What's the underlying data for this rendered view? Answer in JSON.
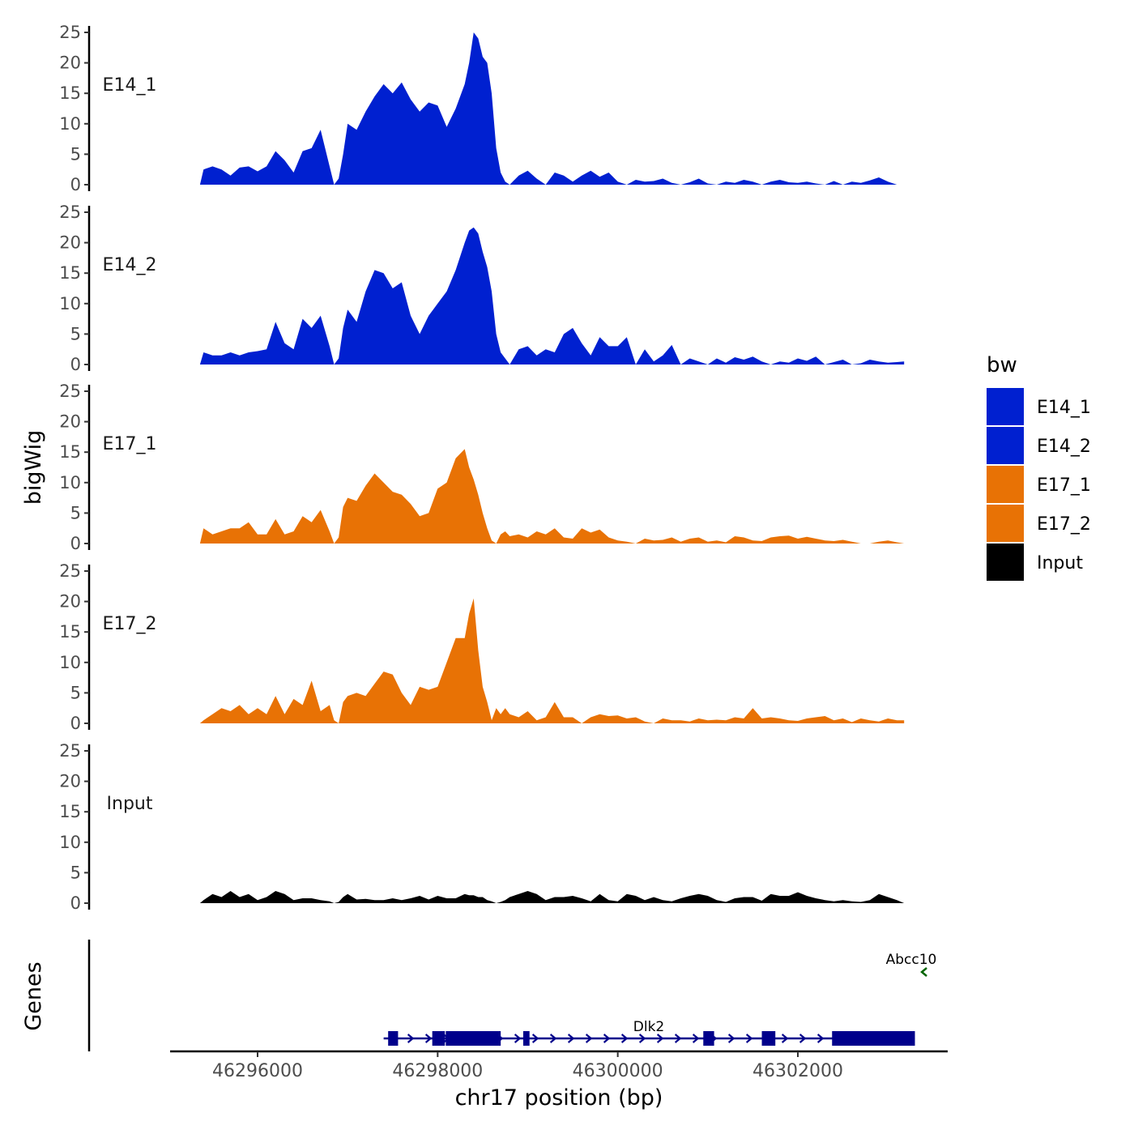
{
  "chart_data": {
    "type": "area",
    "ylabel": "bigWig",
    "xlabel": "chr17 position (bp)",
    "xlim": [
      46295000,
      46303400
    ],
    "x_ticks": [
      46296000,
      46298000,
      46300000,
      46302000
    ],
    "x_tick_labels": [
      "46296000",
      "46298000",
      "46300000",
      "46302000"
    ],
    "ylim": [
      0,
      25
    ],
    "y_ticks": [
      0,
      5,
      10,
      15,
      20,
      25
    ],
    "y_tick_labels": [
      "0",
      "5",
      "10",
      "15",
      "20",
      "25"
    ],
    "legend": {
      "title": "bw",
      "position": "right",
      "entries": [
        {
          "label": "E14_1",
          "color": "#0020d0"
        },
        {
          "label": "E14_2",
          "color": "#0020d0"
        },
        {
          "label": "E17_1",
          "color": "#e87205"
        },
        {
          "label": "E17_2",
          "color": "#e87205"
        },
        {
          "label": "Input",
          "color": "#000000"
        }
      ]
    },
    "series": [
      {
        "name": "E14_1",
        "color": "#0020d0",
        "x": [
          46295360,
          46295400,
          46295500,
          46295600,
          46295700,
          46295800,
          46295900,
          46296000,
          46296100,
          46296200,
          46296300,
          46296400,
          46296500,
          46296600,
          46296700,
          46296800,
          46296850,
          46296900,
          46296950,
          46297000,
          46297100,
          46297200,
          46297300,
          46297400,
          46297500,
          46297600,
          46297700,
          46297800,
          46297900,
          46298000,
          46298100,
          46298200,
          46298300,
          46298350,
          46298400,
          46298450,
          46298500,
          46298550,
          46298600,
          46298650,
          46298700,
          46298750,
          46298800,
          46298900,
          46299000,
          46299100,
          46299200,
          46299300,
          46299400,
          46299500,
          46299600,
          46299700,
          46299800,
          46299900,
          46300000,
          46300100,
          46300200,
          46300300,
          46300400,
          46300500,
          46300600,
          46300700,
          46300800,
          46300900,
          46301000,
          46301100,
          46301200,
          46301300,
          46301400,
          46301500,
          46301600,
          46301700,
          46301800,
          46301900,
          46302000,
          46302100,
          46302200,
          46302300,
          46302400,
          46302500,
          46302600,
          46302700,
          46302800,
          46302900,
          46303000,
          46303100,
          46303180
        ],
        "y": [
          0,
          2.5,
          3,
          2.5,
          1.5,
          2.8,
          3,
          2.2,
          3,
          5.5,
          4,
          2,
          5.5,
          6,
          9,
          3,
          0,
          1,
          5,
          10,
          9,
          12,
          14.5,
          16.5,
          15,
          16.8,
          14,
          12,
          13.5,
          13,
          9.5,
          12.5,
          16.5,
          20,
          25,
          24,
          21,
          20,
          15,
          6,
          2,
          0.5,
          0,
          1.5,
          2.3,
          1,
          0,
          2,
          1.5,
          0.5,
          1.5,
          2.3,
          1.3,
          2,
          0.5,
          0,
          0.8,
          0.5,
          0.6,
          1,
          0.3,
          0,
          0.4,
          1,
          0.2,
          0,
          0.5,
          0.3,
          0.8,
          0.5,
          0,
          0.5,
          0.8,
          0.4,
          0.3,
          0.5,
          0.2,
          0,
          0.6,
          0,
          0.5,
          0.3,
          0.7,
          1.2,
          0.5,
          0,
          0
        ]
      },
      {
        "name": "E14_2",
        "color": "#0020d0",
        "x": [
          46295360,
          46295400,
          46295500,
          46295600,
          46295700,
          46295800,
          46295900,
          46296000,
          46296100,
          46296200,
          46296300,
          46296400,
          46296500,
          46296600,
          46296700,
          46296800,
          46296850,
          46296900,
          46296950,
          46297000,
          46297100,
          46297200,
          46297300,
          46297400,
          46297500,
          46297600,
          46297700,
          46297800,
          46297900,
          46298000,
          46298100,
          46298200,
          46298300,
          46298350,
          46298400,
          46298450,
          46298500,
          46298550,
          46298600,
          46298650,
          46298700,
          46298750,
          46298800,
          46298900,
          46299000,
          46299100,
          46299200,
          46299300,
          46299400,
          46299500,
          46299600,
          46299700,
          46299800,
          46299900,
          46300000,
          46300100,
          46300200,
          46300300,
          46300400,
          46300500,
          46300600,
          46300700,
          46300800,
          46300900,
          46301000,
          46301100,
          46301200,
          46301300,
          46301400,
          46301500,
          46301600,
          46301700,
          46301800,
          46301900,
          46302000,
          46302100,
          46302200,
          46302300,
          46302400,
          46302500,
          46302600,
          46302700,
          46302800,
          46302900,
          46303000,
          46303100,
          46303180
        ],
        "y": [
          0,
          2,
          1.5,
          1.5,
          2,
          1.5,
          2,
          2.2,
          2.5,
          7,
          3.5,
          2.5,
          7.5,
          6,
          8,
          3,
          0,
          1,
          6,
          9,
          7,
          12,
          15.5,
          15,
          12.5,
          13.5,
          8,
          5,
          8,
          10,
          12,
          15.5,
          20,
          22,
          22.5,
          21.5,
          18.5,
          16,
          12,
          5,
          2,
          1,
          0,
          2.5,
          3,
          1.5,
          2.5,
          2,
          5,
          6,
          3.5,
          1.5,
          4.5,
          3,
          3,
          4.5,
          0,
          2.5,
          0.5,
          1.5,
          3.2,
          0,
          1,
          0.5,
          0,
          1,
          0.3,
          1.2,
          0.8,
          1.3,
          0.5,
          0,
          0.5,
          0.3,
          1,
          0.6,
          1.3,
          0,
          0.4,
          0.8,
          0,
          0.2,
          0.8,
          0.5,
          0.3,
          0.4,
          0.5
        ]
      },
      {
        "name": "E17_1",
        "color": "#e87205",
        "x": [
          46295360,
          46295400,
          46295500,
          46295600,
          46295700,
          46295800,
          46295900,
          46296000,
          46296100,
          46296200,
          46296300,
          46296400,
          46296500,
          46296600,
          46296700,
          46296800,
          46296850,
          46296900,
          46296950,
          46297000,
          46297100,
          46297200,
          46297300,
          46297400,
          46297500,
          46297600,
          46297700,
          46297800,
          46297900,
          46298000,
          46298100,
          46298200,
          46298300,
          46298350,
          46298400,
          46298450,
          46298500,
          46298550,
          46298600,
          46298650,
          46298700,
          46298750,
          46298800,
          46298900,
          46299000,
          46299100,
          46299200,
          46299300,
          46299400,
          46299500,
          46299600,
          46299700,
          46299800,
          46299900,
          46300000,
          46300100,
          46300200,
          46300300,
          46300400,
          46300500,
          46300600,
          46300700,
          46300800,
          46300900,
          46301000,
          46301100,
          46301200,
          46301300,
          46301400,
          46301500,
          46301600,
          46301700,
          46301800,
          46301900,
          46302000,
          46302100,
          46302200,
          46302300,
          46302400,
          46302500,
          46302600,
          46302700,
          46302800,
          46302900,
          46303000,
          46303100,
          46303180
        ],
        "y": [
          0,
          2.5,
          1.5,
          2,
          2.5,
          2.5,
          3.5,
          1.5,
          1.5,
          4,
          1.5,
          2,
          4.5,
          3.5,
          5.5,
          2,
          0,
          1,
          6,
          7.5,
          7,
          9.5,
          11.5,
          10,
          8.5,
          8,
          6.5,
          4.5,
          5,
          9,
          10,
          14,
          15.5,
          12.5,
          10.5,
          8,
          5,
          2.5,
          0.5,
          0,
          1.5,
          2,
          1.2,
          1.5,
          1,
          2,
          1.5,
          2.5,
          1,
          0.8,
          2.5,
          1.8,
          2.3,
          1,
          0.5,
          0.3,
          0,
          0.8,
          0.5,
          0.6,
          1,
          0.3,
          0.8,
          1,
          0.3,
          0.5,
          0.2,
          1.2,
          1,
          0.5,
          0.4,
          1,
          1.2,
          1.3,
          0.8,
          1.1,
          0.8,
          0.5,
          0.4,
          0.6,
          0.3,
          0,
          0,
          0.3,
          0.5,
          0.2,
          0
        ]
      },
      {
        "name": "E17_2",
        "color": "#e87205",
        "x": [
          46295360,
          46295400,
          46295500,
          46295600,
          46295700,
          46295800,
          46295900,
          46296000,
          46296100,
          46296200,
          46296300,
          46296400,
          46296500,
          46296600,
          46296700,
          46296800,
          46296850,
          46296900,
          46296950,
          46297000,
          46297100,
          46297200,
          46297300,
          46297400,
          46297500,
          46297600,
          46297700,
          46297800,
          46297900,
          46298000,
          46298100,
          46298200,
          46298300,
          46298350,
          46298400,
          46298450,
          46298500,
          46298550,
          46298600,
          46298650,
          46298700,
          46298750,
          46298800,
          46298900,
          46299000,
          46299100,
          46299200,
          46299300,
          46299400,
          46299500,
          46299600,
          46299700,
          46299800,
          46299900,
          46300000,
          46300100,
          46300200,
          46300300,
          46300400,
          46300500,
          46300600,
          46300700,
          46300800,
          46300900,
          46301000,
          46301100,
          46301200,
          46301300,
          46301400,
          46301500,
          46301600,
          46301700,
          46301800,
          46301900,
          46302000,
          46302100,
          46302200,
          46302300,
          46302400,
          46302500,
          46302600,
          46302700,
          46302800,
          46302900,
          46303000,
          46303100,
          46303180
        ],
        "y": [
          0,
          0.5,
          1.5,
          2.5,
          2,
          3,
          1.5,
          2.5,
          1.5,
          4.5,
          1.5,
          4,
          3,
          7,
          2,
          3,
          0.5,
          0,
          3.5,
          4.5,
          5,
          4.5,
          6.5,
          8.5,
          8,
          5,
          3,
          6,
          5.5,
          6,
          10,
          14,
          14,
          18,
          20.5,
          12,
          6,
          3.5,
          0.5,
          2.5,
          1.5,
          2.5,
          1.5,
          1,
          2,
          0.5,
          1,
          3.5,
          1,
          1,
          0,
          1,
          1.5,
          1.2,
          1.3,
          0.8,
          1,
          0.3,
          0,
          0.8,
          0.5,
          0.5,
          0.3,
          0.8,
          0.5,
          0.6,
          0.5,
          1,
          0.8,
          2.5,
          0.8,
          1,
          0.8,
          0.5,
          0.4,
          0.8,
          1,
          1.2,
          0.5,
          0.8,
          0.2,
          0.8,
          0.5,
          0.3,
          0.8,
          0.5,
          0.5
        ]
      },
      {
        "name": "Input",
        "color": "#000000",
        "x": [
          46295360,
          46295400,
          46295500,
          46295600,
          46295700,
          46295800,
          46295900,
          46296000,
          46296100,
          46296200,
          46296300,
          46296400,
          46296500,
          46296600,
          46296700,
          46296800,
          46296850,
          46296900,
          46296950,
          46297000,
          46297100,
          46297200,
          46297300,
          46297400,
          46297500,
          46297600,
          46297700,
          46297800,
          46297900,
          46298000,
          46298100,
          46298200,
          46298300,
          46298350,
          46298400,
          46298450,
          46298500,
          46298550,
          46298600,
          46298650,
          46298700,
          46298750,
          46298800,
          46298900,
          46299000,
          46299100,
          46299200,
          46299300,
          46299400,
          46299500,
          46299600,
          46299700,
          46299800,
          46299900,
          46300000,
          46300100,
          46300200,
          46300300,
          46300400,
          46300500,
          46300600,
          46300700,
          46300800,
          46300900,
          46301000,
          46301100,
          46301200,
          46301300,
          46301400,
          46301500,
          46301600,
          46301700,
          46301800,
          46301900,
          46302000,
          46302100,
          46302200,
          46302300,
          46302400,
          46302500,
          46302600,
          46302700,
          46302800,
          46302900,
          46303000,
          46303100,
          46303180
        ],
        "y": [
          0,
          0.5,
          1.5,
          1,
          2,
          1,
          1.5,
          0.5,
          1,
          2,
          1.5,
          0.5,
          0.8,
          0.8,
          0.5,
          0.3,
          0,
          0.2,
          1,
          1.5,
          0.6,
          0.7,
          0.5,
          0.5,
          0.8,
          0.5,
          0.8,
          1.2,
          0.6,
          1.2,
          0.8,
          0.8,
          1.5,
          1.3,
          1.3,
          1,
          1,
          0.5,
          0.3,
          0,
          0.2,
          0.5,
          1,
          1.5,
          2,
          1.5,
          0.5,
          1,
          1,
          1.2,
          0.8,
          0.3,
          1.5,
          0.5,
          0.3,
          1.5,
          1.2,
          0.5,
          1,
          0.5,
          0.3,
          0.8,
          1.2,
          1.5,
          1.2,
          0.5,
          0.2,
          0.8,
          1,
          1,
          0.4,
          1.5,
          1.2,
          1.2,
          1.8,
          1.2,
          0.8,
          0.5,
          0.3,
          0.5,
          0.3,
          0.2,
          0.5,
          1.5,
          1,
          0.5,
          0
        ]
      }
    ],
    "genes": {
      "title": "Genes",
      "items": [
        {
          "name": "Dlk2",
          "strand": "+",
          "start": 46297400,
          "end": 46303300,
          "color": "#00008b",
          "exons": [
            [
              46297450,
              46297560
            ],
            [
              46297940,
              46298080
            ],
            [
              46298090,
              46298700
            ],
            [
              46298950,
              46299020
            ],
            [
              46300950,
              46301070
            ],
            [
              46301600,
              46301750
            ],
            [
              46302380,
              46303300
            ]
          ]
        },
        {
          "name": "Abcc10",
          "strand": "-",
          "start": 46303260,
          "end": 46303320,
          "color": "#006400",
          "exons": []
        }
      ]
    }
  }
}
